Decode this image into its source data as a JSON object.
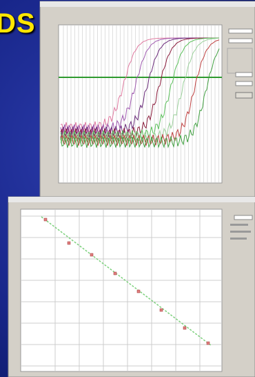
{
  "slide": {
    "title": "DS"
  }
}
